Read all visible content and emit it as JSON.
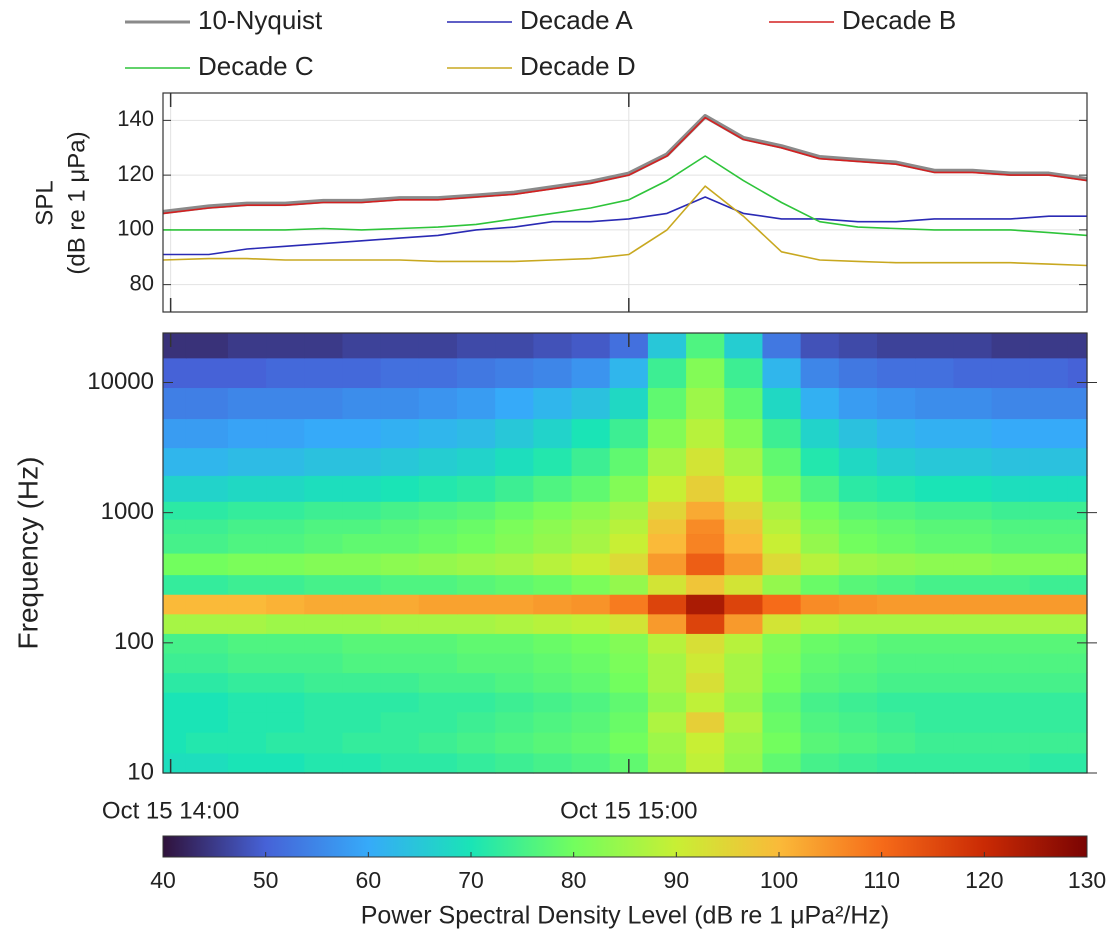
{
  "chart_data": [
    {
      "type": "line",
      "ylabel": [
        "SPL",
        "(dB re 1 μPa)"
      ],
      "legend": "top",
      "grid": true,
      "x": [
        839,
        845,
        850,
        855,
        860,
        865,
        870,
        875,
        880,
        885,
        890,
        895,
        900,
        905,
        910,
        915,
        920,
        925,
        930,
        935,
        940,
        945,
        950,
        955,
        960
      ],
      "xlim": [
        839,
        960
      ],
      "ylim": [
        70,
        150
      ],
      "yticks": [
        80,
        100,
        120,
        140
      ],
      "series": [
        {
          "name": "10-Nyquist",
          "color": "#8a8a8a",
          "values": [
            106.5,
            108.5,
            109.5,
            109.5,
            110.5,
            110.5,
            111.5,
            111.5,
            112.5,
            113.5,
            115.5,
            117.5,
            120.5,
            127.5,
            141.5,
            133.5,
            130.5,
            126.5,
            125.5,
            124.5,
            121.5,
            121.5,
            120.5,
            120.5,
            118.5
          ]
        },
        {
          "name": "Decade A",
          "color": "#2a2ab4",
          "values": [
            91,
            91,
            93,
            94,
            95,
            96,
            97,
            98,
            100,
            101,
            103,
            103,
            104,
            106,
            112,
            106,
            104,
            104,
            103,
            103,
            104,
            104,
            104,
            105,
            105
          ]
        },
        {
          "name": "Decade B",
          "color": "#d42020",
          "values": [
            106,
            108,
            109,
            109,
            110,
            110,
            111,
            111,
            112,
            113,
            115,
            117,
            120,
            127,
            141,
            133,
            130,
            126,
            125,
            124,
            121,
            121,
            120,
            120,
            118
          ]
        },
        {
          "name": "Decade C",
          "color": "#2ec43a",
          "values": [
            100,
            100,
            100,
            100,
            100.5,
            100,
            100.5,
            101,
            102,
            104,
            106,
            108,
            111,
            118,
            127,
            118,
            110,
            103,
            101,
            100.5,
            100,
            100,
            100,
            99,
            98
          ]
        },
        {
          "name": "Decade D",
          "color": "#c8a820",
          "values": [
            89,
            89.5,
            89.5,
            89,
            89,
            89,
            89,
            88.5,
            88.5,
            88.5,
            89,
            89.5,
            91,
            100,
            116,
            105,
            92,
            89,
            88.5,
            88,
            88,
            88,
            88,
            87.5,
            87
          ]
        }
      ]
    },
    {
      "type": "heatmap",
      "ylabel": "Frequency (Hz)",
      "log_y": true,
      "x": [
        839,
        845,
        850,
        855,
        860,
        865,
        870,
        875,
        880,
        885,
        890,
        895,
        900,
        905,
        910,
        915,
        920,
        925,
        930,
        935,
        940,
        945,
        950,
        955,
        960
      ],
      "xlim": [
        839,
        960
      ],
      "xticks": [
        {
          "value": 840,
          "label": "Oct 15 14:00"
        },
        {
          "value": 900,
          "label": "Oct 15 15:00"
        }
      ],
      "y": [
        12,
        17,
        25,
        35,
        50,
        70,
        100,
        140,
        200,
        280,
        400,
        600,
        800,
        1000,
        1500,
        2500,
        4000,
        7000,
        12000,
        20000
      ],
      "ylim": [
        10,
        24000
      ],
      "yticks": [
        10,
        100,
        1000,
        10000
      ],
      "z": [
        [
          69,
          69,
          70,
          70,
          71,
          71,
          72,
          72,
          73,
          74,
          75,
          76,
          78,
          84,
          89,
          84,
          78,
          75,
          74,
          73,
          73,
          73,
          73,
          72,
          72
        ],
        [
          70,
          71,
          71,
          72,
          72,
          73,
          73,
          74,
          75,
          76,
          77,
          78,
          80,
          85,
          90,
          85,
          80,
          77,
          76,
          75,
          74,
          74,
          74,
          74,
          74
        ],
        [
          70,
          70,
          71,
          71,
          72,
          72,
          73,
          73,
          74,
          75,
          76,
          77,
          79,
          87,
          96,
          87,
          79,
          76,
          75,
          74,
          73,
          73,
          73,
          73,
          73
        ],
        [
          70,
          70,
          71,
          71,
          72,
          72,
          72,
          73,
          73,
          74,
          75,
          76,
          78,
          84,
          89,
          84,
          78,
          75,
          74,
          73,
          73,
          73,
          73,
          73,
          73
        ],
        [
          72,
          72,
          73,
          73,
          74,
          74,
          74,
          75,
          75,
          76,
          77,
          78,
          80,
          86,
          93,
          86,
          80,
          77,
          76,
          75,
          75,
          75,
          75,
          75,
          75
        ],
        [
          74,
          74,
          75,
          75,
          75,
          76,
          76,
          76,
          77,
          77,
          78,
          79,
          81,
          86,
          91,
          86,
          81,
          78,
          77,
          76,
          76,
          76,
          76,
          76,
          76
        ],
        [
          75,
          75,
          76,
          76,
          76,
          77,
          77,
          77,
          78,
          78,
          79,
          80,
          82,
          88,
          93,
          88,
          82,
          79,
          78,
          77,
          77,
          77,
          77,
          77,
          77
        ],
        [
          86,
          86,
          86,
          85,
          85,
          85,
          86,
          86,
          86,
          87,
          88,
          89,
          92,
          104,
          116,
          104,
          92,
          88,
          86,
          86,
          86,
          86,
          86,
          86,
          86
        ],
        [
          100,
          100,
          100,
          101,
          102,
          102,
          102,
          103,
          103,
          103,
          104,
          105,
          108,
          116,
          124,
          116,
          110,
          106,
          105,
          104,
          104,
          104,
          104,
          104,
          104
        ],
        [
          73,
          73,
          74,
          74,
          75,
          75,
          76,
          76,
          77,
          78,
          79,
          81,
          84,
          92,
          98,
          92,
          84,
          79,
          77,
          76,
          75,
          75,
          75,
          74,
          74
        ],
        [
          80,
          80,
          81,
          81,
          82,
          82,
          83,
          84,
          85,
          86,
          88,
          90,
          94,
          104,
          112,
          104,
          94,
          88,
          85,
          84,
          83,
          83,
          82,
          82,
          82
        ],
        [
          75,
          75,
          76,
          76,
          77,
          78,
          78,
          79,
          80,
          82,
          84,
          86,
          90,
          100,
          107,
          100,
          90,
          84,
          80,
          79,
          78,
          78,
          77,
          77,
          77
        ],
        [
          74,
          74,
          75,
          75,
          76,
          76,
          77,
          78,
          79,
          81,
          83,
          85,
          88,
          98,
          106,
          98,
          88,
          82,
          79,
          78,
          77,
          77,
          76,
          76,
          76
        ],
        [
          72,
          72,
          73,
          73,
          74,
          74,
          75,
          76,
          77,
          79,
          81,
          83,
          86,
          95,
          102,
          95,
          86,
          80,
          77,
          76,
          75,
          75,
          74,
          74,
          74
        ],
        [
          67,
          67,
          68,
          68,
          69,
          69,
          70,
          71,
          72,
          74,
          76,
          78,
          82,
          90,
          96,
          90,
          82,
          76,
          72,
          71,
          70,
          70,
          69,
          69,
          69
        ],
        [
          62,
          62,
          63,
          63,
          64,
          64,
          65,
          66,
          67,
          69,
          71,
          74,
          78,
          86,
          92,
          86,
          78,
          71,
          68,
          66,
          65,
          65,
          64,
          64,
          64
        ],
        [
          58,
          58,
          59,
          59,
          60,
          60,
          61,
          62,
          63,
          65,
          67,
          70,
          74,
          82,
          88,
          82,
          74,
          67,
          64,
          62,
          61,
          61,
          60,
          60,
          60
        ],
        [
          54,
          54,
          55,
          55,
          55,
          56,
          56,
          57,
          58,
          60,
          62,
          64,
          68,
          78,
          85,
          78,
          68,
          61,
          58,
          57,
          56,
          56,
          55,
          55,
          55
        ],
        [
          50,
          50,
          50,
          51,
          51,
          51,
          52,
          52,
          53,
          54,
          55,
          57,
          62,
          74,
          82,
          74,
          62,
          55,
          53,
          52,
          52,
          51,
          51,
          51,
          50
        ],
        [
          44,
          44,
          45,
          45,
          45,
          46,
          46,
          46,
          47,
          47,
          48,
          49,
          52,
          65,
          76,
          66,
          53,
          48,
          47,
          46,
          46,
          46,
          45,
          45,
          45
        ]
      ],
      "colorbar": {
        "label": "Power Spectral Density Level (dB re 1 μPa²/Hz)",
        "clim": [
          40,
          130
        ],
        "ticks": [
          40,
          50,
          60,
          70,
          80,
          90,
          100,
          110,
          120,
          130
        ],
        "colormap": [
          "#30123b",
          "#4662d7",
          "#36aaf9",
          "#1ae4b6",
          "#72fe5e",
          "#c8ef34",
          "#faba39",
          "#f66b19",
          "#ca2a04",
          "#7a0403"
        ]
      }
    }
  ]
}
